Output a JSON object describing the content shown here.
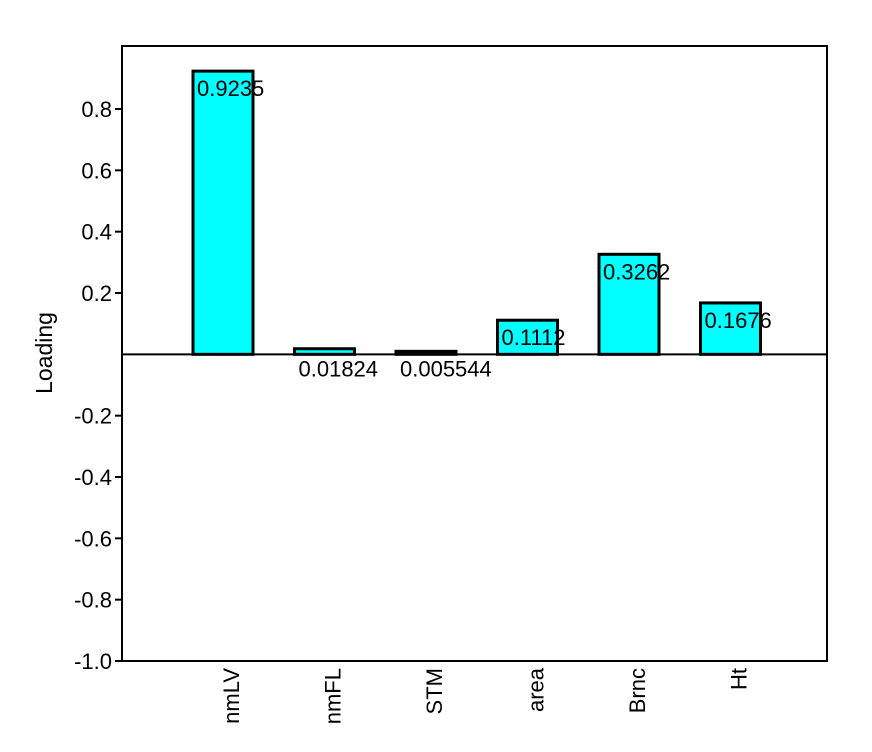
{
  "chart_data": {
    "type": "bar",
    "ylabel": "Loading",
    "xlabel": "",
    "categories": [
      "nmLV",
      "nmFL",
      "STM",
      "area",
      "Brnc",
      "Ht"
    ],
    "values": [
      0.9235,
      0.01824,
      0.005544,
      0.1112,
      0.3262,
      0.1676
    ],
    "data_labels": [
      "0.9235",
      "0.01824",
      "0.005544",
      "0.1112",
      "0.3262",
      "0.1676"
    ],
    "ylim": [
      -1.0,
      1.0
    ],
    "yticks": [
      0.8,
      0.6,
      0.4,
      0.2,
      -0.2,
      -0.4,
      -0.6,
      -0.8,
      -1.0
    ],
    "ytick_labels": [
      "0.8",
      "0.6",
      "0.4",
      "0.2",
      "-0.2",
      "-0.4",
      "-0.6",
      "-0.8",
      "-1.0"
    ],
    "bar_color": "#00ffff",
    "bar_edge_color": "#000000",
    "zero_line": true,
    "grid": false,
    "legend": "none"
  }
}
